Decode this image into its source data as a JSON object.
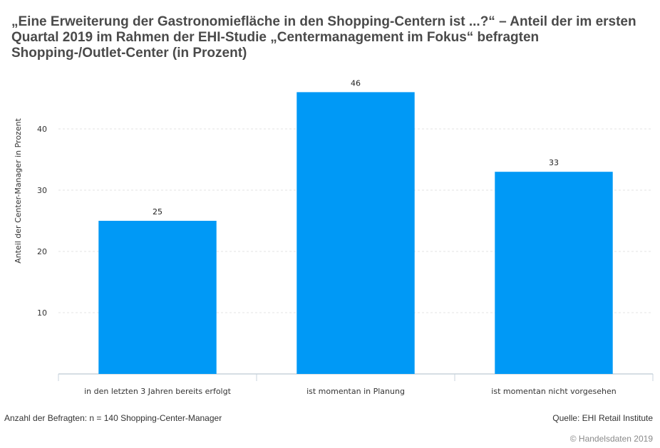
{
  "chart_data": {
    "type": "bar",
    "title": "„Eine Erweiterung der Gastronomiefläche in den Shopping-Centern ist ...?“ – Anteil der im ersten Quartal 2019 im Rahmen der EHI-Studie „Centermanagement im Fokus“ befragten Shopping-/Outlet-Center (in Prozent)",
    "categories": [
      "in den letzten 3 Jahren bereits erfolgt",
      "ist momentan in Planung",
      "ist momentan nicht vorgesehen"
    ],
    "values": [
      25,
      46,
      33
    ],
    "xlabel": "",
    "ylabel": "Anteil der Center-Manager in Prozent",
    "ylim": [
      0,
      50
    ],
    "yticks": [
      10,
      20,
      30,
      40
    ],
    "grid": true,
    "bar_color": "#0099f6",
    "data_labels": [
      "25",
      "46",
      "33"
    ]
  },
  "footer": {
    "note": "Anzahl der Befragten: n = 140 Shopping-Center-Manager",
    "source": "Quelle: EHI Retail Institute",
    "copyright": "© Handelsdaten 2019"
  }
}
